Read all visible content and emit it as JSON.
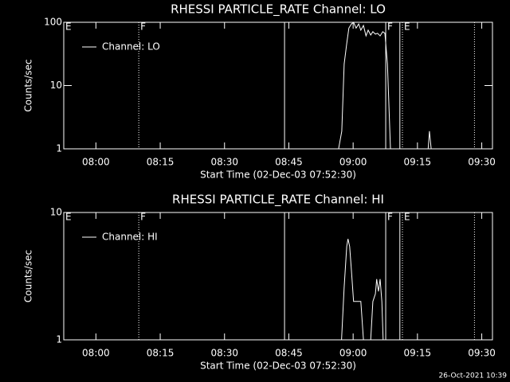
{
  "chart_data": [
    {
      "type": "line",
      "title": "RHESSI PARTICLE_RATE Channel: LO",
      "x_label": "Start Time (02-Dec-03 07:52:30)",
      "y_label": "Counts/sec",
      "log_y": true,
      "legend": "top-left",
      "xlim": [
        472.5,
        572.5
      ],
      "xticks": [
        {
          "value": 480,
          "label": "08:00"
        },
        {
          "value": 495,
          "label": "08:15"
        },
        {
          "value": 510,
          "label": "08:30"
        },
        {
          "value": 525,
          "label": "08:45"
        },
        {
          "value": 540,
          "label": "09:00"
        },
        {
          "value": 555,
          "label": "09:15"
        },
        {
          "value": 570,
          "label": "09:30"
        }
      ],
      "ylim": [
        1,
        100
      ],
      "yticks": [
        1,
        10,
        100
      ],
      "flags": [
        {
          "x": 472.5,
          "label": "E",
          "style": "solid"
        },
        {
          "x": 490,
          "label": "F",
          "style": "dotted"
        },
        {
          "x": 524,
          "style": "solid"
        },
        {
          "x": 547.6,
          "label": "F",
          "style": "solid"
        },
        {
          "x": 550.9,
          "style": "solid"
        },
        {
          "x": 551.5,
          "label": "E",
          "style": "dotted"
        },
        {
          "x": 568.3,
          "style": "dotted"
        }
      ],
      "x": [
        536.6,
        537.35,
        537.9,
        538.5,
        539.0,
        539.6,
        540.1,
        540.7,
        541.3,
        541.8,
        542.4,
        543.0,
        543.5,
        544.1,
        544.6,
        545.2,
        545.7,
        546.3,
        546.9,
        547.4,
        548.0,
        548.7,
        null,
        557.5,
        557.8,
        558.2
      ],
      "series": [
        {
          "name": "Channel: LO",
          "color": "#ffffff",
          "values": [
            1,
            1.9,
            22,
            46,
            81,
            94,
            100,
            81,
            94,
            75,
            89,
            61,
            75,
            63,
            71,
            65,
            67,
            61,
            71,
            67,
            22,
            1,
            null,
            1,
            1.9,
            1
          ]
        }
      ]
    },
    {
      "type": "line",
      "title": "RHESSI PARTICLE_RATE Channel: HI",
      "x_label": "Start Time (02-Dec-03 07:52:30)",
      "y_label": "Counts/sec",
      "log_y": true,
      "legend": "top-left",
      "xlim": [
        472.5,
        572.5
      ],
      "xticks": [
        {
          "value": 480,
          "label": "08:00"
        },
        {
          "value": 495,
          "label": "08:15"
        },
        {
          "value": 510,
          "label": "08:30"
        },
        {
          "value": 525,
          "label": "08:45"
        },
        {
          "value": 540,
          "label": "09:00"
        },
        {
          "value": 555,
          "label": "09:15"
        },
        {
          "value": 570,
          "label": "09:30"
        }
      ],
      "ylim": [
        1,
        10
      ],
      "yticks": [
        1,
        10
      ],
      "flags": [
        {
          "x": 472.5,
          "label": "E",
          "style": "solid"
        },
        {
          "x": 490,
          "label": "F",
          "style": "dotted"
        },
        {
          "x": 524,
          "style": "solid"
        },
        {
          "x": 547.6,
          "label": "F",
          "style": "solid"
        },
        {
          "x": 550.9,
          "style": "solid"
        },
        {
          "x": 551.5,
          "label": "E",
          "style": "dotted"
        },
        {
          "x": 568.3,
          "style": "dotted"
        }
      ],
      "x": [
        537.3,
        537.9,
        538.5,
        538.8,
        539.2,
        539.6,
        540.1,
        540.7,
        541.3,
        541.8,
        542.4,
        null,
        544.1,
        544.6,
        545.2,
        545.5,
        545.9,
        546.3,
        546.7,
        547.0
      ],
      "series": [
        {
          "name": "Channel: HI",
          "color": "#ffffff",
          "values": [
            1,
            2.6,
            5.4,
            6.2,
            5.4,
            3.5,
            2.0,
            2.0,
            2.0,
            2.0,
            1,
            null,
            1,
            2.0,
            2.3,
            3.0,
            2.4,
            3.0,
            2.0,
            1
          ]
        }
      ]
    }
  ],
  "footer": "26-Oct-2021 10:39"
}
